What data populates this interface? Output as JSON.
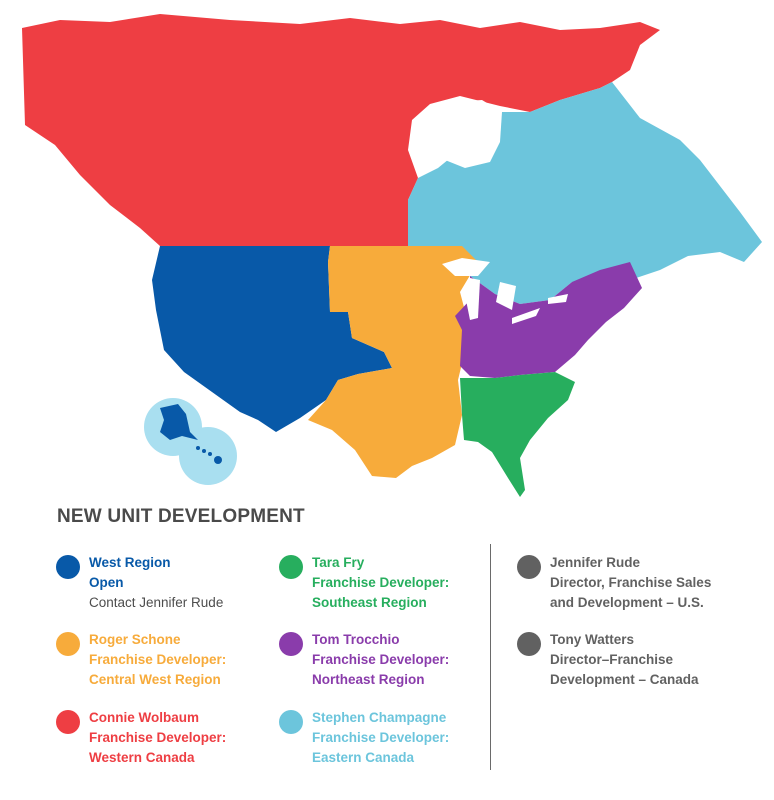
{
  "colors": {
    "west": "#0859a8",
    "central_west": "#f7ab3b",
    "western_canada": "#ee3e43",
    "southeast": "#27ae5e",
    "northeast": "#8a3cab",
    "eastern_canada": "#6cc5dc",
    "contact": "#616161",
    "water": "#ffffff",
    "pacific_bubble": "#a9dff0"
  },
  "heading": "NEW UNIT DEVELOPMENT",
  "legend": [
    {
      "key": "west",
      "line1": "West Region",
      "line2": "Open",
      "line3": "Contact Jennifer Rude"
    },
    {
      "key": "central_west",
      "line1": "Roger Schone",
      "line2": "Franchise Developer:",
      "line3": "Central West Region"
    },
    {
      "key": "western_canada",
      "line1": "Connie Wolbaum",
      "line2": "Franchise Developer:",
      "line3": "Western Canada"
    },
    {
      "key": "southeast",
      "line1": "Tara Fry",
      "line2": "Franchise Developer:",
      "line3": "Southeast Region"
    },
    {
      "key": "northeast",
      "line1": "Tom Trocchio",
      "line2": "Franchise Developer:",
      "line3": "Northeast Region"
    },
    {
      "key": "eastern_canada",
      "line1": "Stephen Champagne",
      "line2": "Franchise Developer:",
      "line3": "Eastern Canada"
    }
  ],
  "contacts": [
    {
      "line1": "Jennifer Rude",
      "line2": "Director, Franchise Sales",
      "line3": "and Development – U.S."
    },
    {
      "line1": "Tony Watters",
      "line2": "Director–Franchise",
      "line3": "Development – Canada"
    }
  ]
}
